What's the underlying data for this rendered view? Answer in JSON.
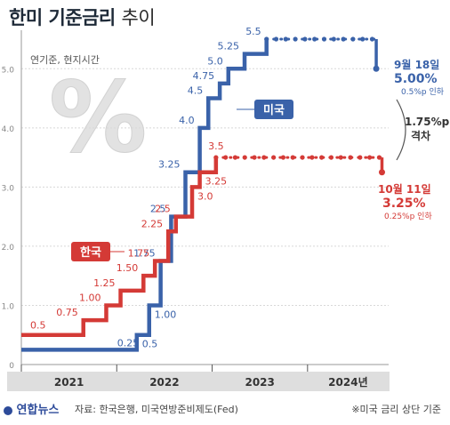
{
  "header": {
    "title_main": "한미 기준금리",
    "title_sub": "추이"
  },
  "note_top": "연기준, 현지시간",
  "percent_symbol": "%",
  "footer": {
    "logo": "연합뉴스",
    "source": "자료: 한국은행, 미국연방준비제도(Fed)",
    "note": "※미국 금리 상단 기준"
  },
  "annotations": {
    "us_date": "9월 18일",
    "us_value": "5.00%",
    "us_change": "0.5%p 인하",
    "kr_date": "10월 11일",
    "kr_value": "3.25%",
    "kr_change": "0.25%p 인하",
    "gap_value": "1.75%p",
    "gap_label": "격차"
  },
  "colors": {
    "us": "#3a62a9",
    "kr": "#d43a36",
    "axis": "#9a9a9a",
    "grid": "#d8d8d8",
    "year_bar": "#dedede"
  },
  "chart_data": {
    "type": "line",
    "step": true,
    "ylim": [
      0,
      5.5
    ],
    "yticks": [
      "0",
      "1.0",
      "2.0",
      "3.0",
      "4.0",
      "5.0"
    ],
    "grid": true,
    "x_years": [
      "2021",
      "2022",
      "2023",
      "2024년"
    ],
    "series": [
      {
        "name": "미국",
        "color": "#3a62a9",
        "x": [
          2021.0,
          2022.21,
          2022.34,
          2022.46,
          2022.57,
          2022.72,
          2022.87,
          2022.96,
          2023.08,
          2023.17,
          2023.34,
          2023.57,
          2024.72,
          2024.83
        ],
        "values": [
          0.25,
          0.5,
          1.0,
          1.75,
          2.5,
          3.25,
          4.0,
          4.5,
          4.75,
          5.0,
          5.25,
          5.5,
          5.0,
          5.0
        ],
        "labels": [
          "0.25",
          "0.5",
          "1.00",
          "1.75",
          "2.5",
          "3.25",
          "4.0",
          "4.5",
          "4.75",
          "5.0",
          "5.25",
          "5.5"
        ]
      },
      {
        "name": "한국",
        "color": "#d43a36",
        "x": [
          2021.0,
          2021.65,
          2021.89,
          2022.04,
          2022.28,
          2022.4,
          2022.54,
          2022.62,
          2022.79,
          2022.87,
          2023.04,
          2024.78,
          2024.83
        ],
        "values": [
          0.5,
          0.75,
          1.0,
          1.25,
          1.5,
          1.75,
          2.25,
          2.5,
          3.0,
          3.25,
          3.5,
          3.25,
          3.25
        ],
        "labels": [
          "0.5",
          "0.75",
          "1.00",
          "1.25",
          "1.50",
          "1.75",
          "2.25",
          "2.5",
          "3.0",
          "3.25",
          "3.5"
        ]
      }
    ]
  }
}
